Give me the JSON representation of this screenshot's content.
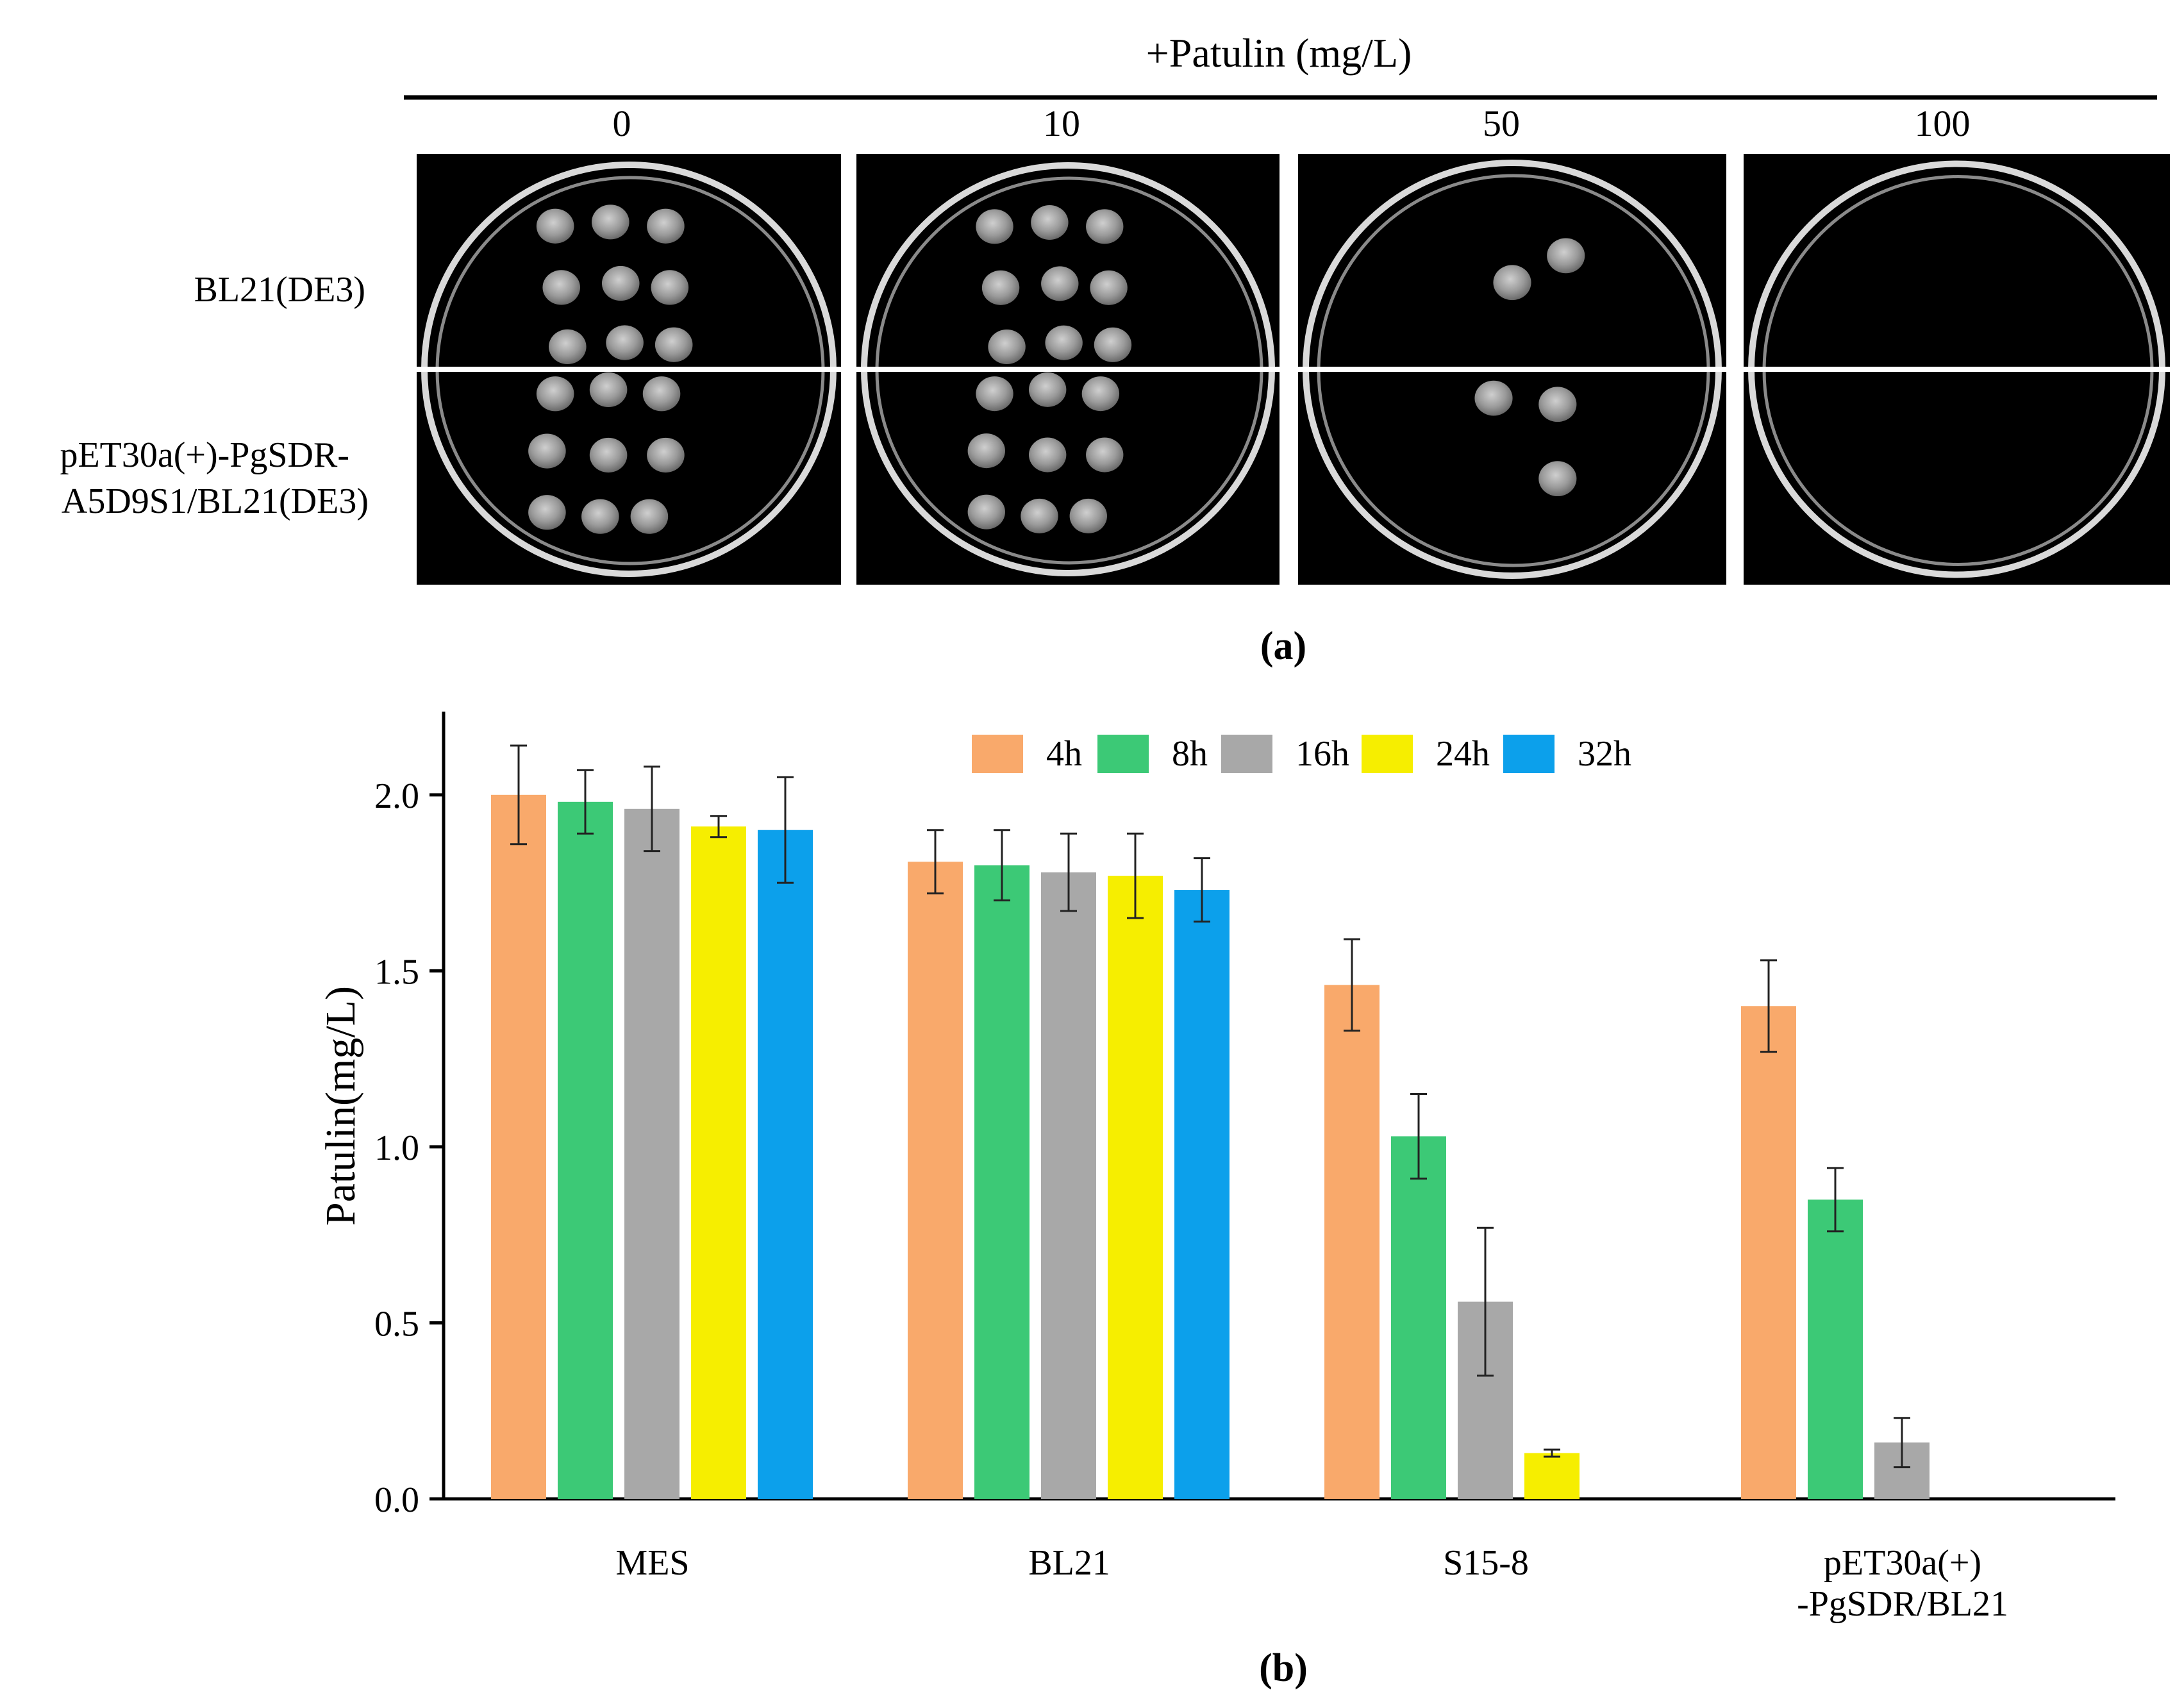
{
  "panel_a": {
    "header": "+Patulin (mg/L)",
    "concentrations": [
      "0",
      "10",
      "50",
      "100"
    ],
    "row_labels": [
      [
        "BL21(DE3)"
      ],
      [
        "pET30a(+)-PgSDR-",
        "A5D9S1/BL21(DE3)"
      ]
    ],
    "colony_counts": [
      [
        9,
        9,
        2,
        0
      ],
      [
        9,
        9,
        3,
        0
      ]
    ],
    "caption": "(a)"
  },
  "panel_b": {
    "caption": "(b)"
  },
  "chart_data": {
    "type": "bar",
    "title": "",
    "xlabel": "",
    "ylabel": "Patulin(mg/L)",
    "ylim": [
      0,
      2.2
    ],
    "yticks": [
      "0.0",
      "0.5",
      "1.0",
      "1.5",
      "2.0"
    ],
    "legend_position": "top-center",
    "categories": [
      [
        "MES"
      ],
      [
        "BL21"
      ],
      [
        "S15-8"
      ],
      [
        "pET30a(+)",
        "-PgSDR/BL21"
      ]
    ],
    "series": [
      {
        "name": "4h",
        "color": "#F9A96B",
        "values": [
          2.0,
          1.81,
          1.46,
          1.4
        ],
        "errors": [
          0.14,
          0.09,
          0.13,
          0.13
        ]
      },
      {
        "name": "8h",
        "color": "#3CC976",
        "values": [
          1.98,
          1.8,
          1.03,
          0.85
        ],
        "errors": [
          0.09,
          0.1,
          0.12,
          0.09
        ]
      },
      {
        "name": "16h",
        "color": "#A8A8A8",
        "values": [
          1.96,
          1.78,
          0.56,
          0.16
        ],
        "errors": [
          0.12,
          0.11,
          0.21,
          0.07
        ]
      },
      {
        "name": "24h",
        "color": "#F6EE00",
        "values": [
          1.91,
          1.77,
          0.13,
          null
        ],
        "errors": [
          0.03,
          0.12,
          0.01,
          null
        ]
      },
      {
        "name": "32h",
        "color": "#0CA0EB",
        "values": [
          1.9,
          1.73,
          null,
          null
        ],
        "errors": [
          0.15,
          0.09,
          null,
          null
        ]
      }
    ]
  }
}
